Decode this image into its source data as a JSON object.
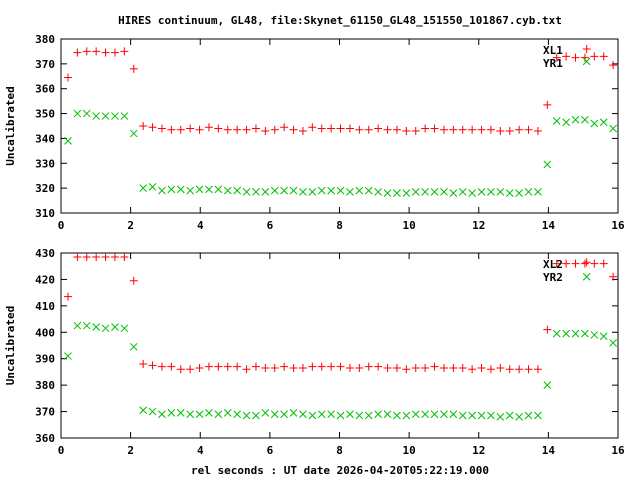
{
  "title": "HIRES continuum, GL48, file:Skynet_61150_GL48_151550_101867.cyb.txt",
  "xlabel": "rel seconds : UT date 2026-04-20T05:22:19.000",
  "colors": {
    "xl": "#ff0000",
    "yr": "#00c000",
    "axis": "#000000"
  },
  "chart_data": [
    {
      "type": "scatter",
      "ylabel": "Uncalibrated",
      "xlim": [
        0,
        16
      ],
      "ylim": [
        310,
        380
      ],
      "xticks": [
        "0",
        "2",
        "4",
        "6",
        "8",
        "10",
        "12",
        "14",
        "16"
      ],
      "yticks": [
        "310",
        "320",
        "330",
        "340",
        "350",
        "360",
        "370",
        "380"
      ],
      "legend": "top-right",
      "x": [
        0.2,
        0.47,
        0.74,
        1.01,
        1.28,
        1.55,
        1.82,
        2.09,
        2.36,
        2.63,
        2.9,
        3.17,
        3.44,
        3.71,
        3.98,
        4.25,
        4.52,
        4.79,
        5.06,
        5.33,
        5.6,
        5.87,
        6.14,
        6.41,
        6.68,
        6.95,
        7.22,
        7.49,
        7.76,
        8.03,
        8.3,
        8.57,
        8.84,
        9.11,
        9.38,
        9.65,
        9.92,
        10.19,
        10.46,
        10.73,
        11.0,
        11.27,
        11.54,
        11.81,
        12.08,
        12.35,
        12.62,
        12.89,
        13.16,
        13.43,
        13.7,
        13.97,
        14.24,
        14.51,
        14.78,
        15.05,
        15.32,
        15.59,
        15.86,
        15.1
      ],
      "series": [
        {
          "name": "XL1",
          "marker": "plus",
          "values": [
            364.5,
            374.5,
            375,
            375,
            374.5,
            374.5,
            375,
            368,
            345,
            344.5,
            344,
            343.5,
            343.5,
            344,
            343.5,
            344.5,
            344,
            343.5,
            343.5,
            343.5,
            344,
            343,
            343.5,
            344.5,
            343.5,
            343,
            344.5,
            344,
            344,
            344,
            344,
            343.5,
            343.5,
            344,
            343.5,
            343.5,
            343,
            343,
            344,
            344,
            343.5,
            343.5,
            343.5,
            343.5,
            343.5,
            343.5,
            343,
            343,
            343.5,
            343.5,
            343,
            353.5,
            372.5,
            373,
            372.5,
            372.5,
            373,
            373,
            369.5,
            376
          ]
        },
        {
          "name": "YR1",
          "marker": "cross",
          "values": [
            339,
            350,
            350,
            349,
            349,
            349,
            349,
            342,
            320,
            320.5,
            319,
            319.5,
            319.5,
            319,
            319.5,
            319.5,
            319.5,
            319,
            319,
            318.5,
            318.5,
            318.5,
            319,
            319,
            319,
            318.5,
            318.5,
            319,
            319,
            319,
            318.5,
            319,
            319,
            318.5,
            318,
            318,
            318,
            318.5,
            318.5,
            318.5,
            318.5,
            318,
            318.5,
            318,
            318.5,
            318.5,
            318.5,
            318,
            318,
            318.5,
            318.5,
            329.5,
            347,
            346.5,
            347.5,
            347.5,
            346,
            346.5,
            344,
            371
          ]
        }
      ]
    },
    {
      "type": "scatter",
      "ylabel": "Uncalibrated",
      "xlim": [
        0,
        16
      ],
      "ylim": [
        360,
        430
      ],
      "xticks": [
        "0",
        "2",
        "4",
        "6",
        "8",
        "10",
        "12",
        "14",
        "16"
      ],
      "yticks": [
        "360",
        "370",
        "380",
        "390",
        "400",
        "410",
        "420",
        "430"
      ],
      "legend": "top-right",
      "x": [
        0.2,
        0.47,
        0.74,
        1.01,
        1.28,
        1.55,
        1.82,
        2.09,
        2.36,
        2.63,
        2.9,
        3.17,
        3.44,
        3.71,
        3.98,
        4.25,
        4.52,
        4.79,
        5.06,
        5.33,
        5.6,
        5.87,
        6.14,
        6.41,
        6.68,
        6.95,
        7.22,
        7.49,
        7.76,
        8.03,
        8.3,
        8.57,
        8.84,
        9.11,
        9.38,
        9.65,
        9.92,
        10.19,
        10.46,
        10.73,
        11.0,
        11.27,
        11.54,
        11.81,
        12.08,
        12.35,
        12.62,
        12.89,
        13.16,
        13.43,
        13.7,
        13.97,
        14.24,
        14.51,
        14.78,
        15.05,
        15.32,
        15.59,
        15.86,
        15.1
      ],
      "series": [
        {
          "name": "XL2",
          "marker": "plus",
          "values": [
            413.5,
            428.5,
            428.5,
            428.5,
            428.5,
            428.5,
            428.5,
            419.5,
            388,
            387.5,
            387,
            387,
            386,
            386,
            386.5,
            387,
            387,
            387,
            387,
            386,
            387,
            386.5,
            386.5,
            387,
            386.5,
            386.5,
            387,
            387,
            387,
            387,
            386.5,
            386.5,
            387,
            387,
            386.5,
            386.5,
            386,
            386.5,
            386.5,
            387,
            386.5,
            386.5,
            386.5,
            386,
            386.5,
            386,
            386.5,
            386,
            386,
            386,
            386,
            401,
            426,
            426,
            426,
            426,
            426,
            426,
            421,
            426.5
          ]
        },
        {
          "name": "YR2",
          "marker": "cross",
          "values": [
            391,
            402.5,
            402.5,
            402,
            401.5,
            402,
            401.5,
            394.5,
            370.5,
            370,
            369,
            369.5,
            369.5,
            369,
            369,
            369.5,
            369,
            369.5,
            369,
            368.5,
            368.5,
            369.5,
            369,
            369,
            369.5,
            369,
            368.5,
            369,
            369,
            368.5,
            369,
            368.5,
            368.5,
            369,
            369,
            368.5,
            368.5,
            369,
            369,
            369,
            369,
            369,
            368.5,
            368.5,
            368.5,
            368.5,
            368,
            368.5,
            368,
            368.5,
            368.5,
            380,
            399.5,
            399.5,
            399.5,
            399.5,
            399,
            398.5,
            396,
            421
          ]
        }
      ]
    }
  ]
}
